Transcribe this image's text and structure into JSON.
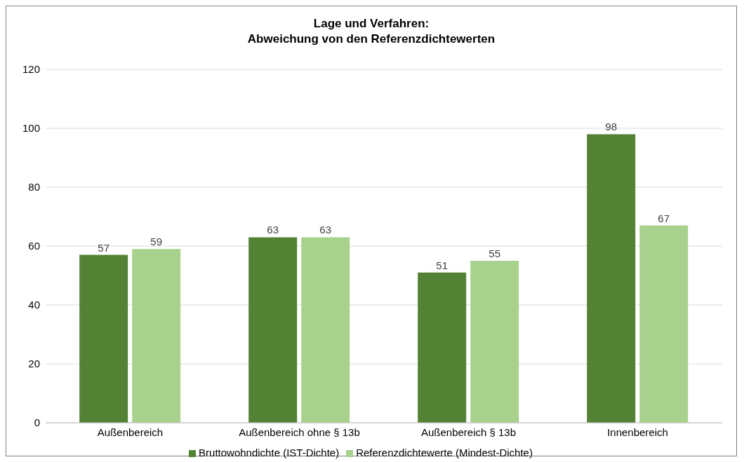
{
  "chart_data": {
    "type": "bar",
    "title": "Lage und Verfahren:\nAbweichung von den Referenzdichtewerten",
    "categories": [
      "Außenbereich",
      "Außenbereich ohne § 13b",
      "Außenbereich § 13b",
      "Innenbereich"
    ],
    "series": [
      {
        "name": "Bruttowohndichte (IST-Dichte)",
        "color": "#548235",
        "values": [
          57,
          63,
          51,
          98
        ]
      },
      {
        "name": "Referenzdichtewerte (Mindest-Dichte)",
        "color": "#a9d18e",
        "values": [
          59,
          63,
          55,
          67
        ]
      }
    ],
    "ylim": [
      0,
      120
    ],
    "yticks": [
      0,
      20,
      40,
      60,
      80,
      100,
      120
    ],
    "grid": "y",
    "legend": "bottom",
    "data_labels": true
  }
}
